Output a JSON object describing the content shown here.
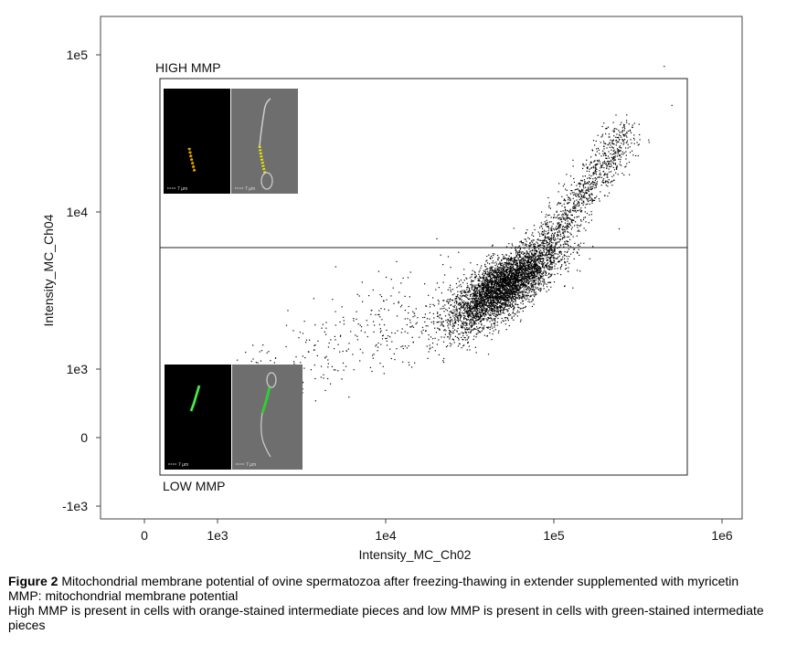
{
  "colors": {
    "points": "#000000",
    "frame": "#444444",
    "orange_stain": "#e6b800",
    "green_stain": "#33cc33",
    "cell_background_dark": "#000000",
    "cell_background_bright": "#6e6e6e"
  },
  "icons": {
    "high_mmp_fluorescence": "orange-stained-spermatozoon-image",
    "high_mmp_brightfield": "brightfield-spermatozoon-image",
    "low_mmp_fluorescence": "green-stained-spermatozoon-image",
    "low_mmp_brightfield": "brightfield-spermatozoon-image"
  },
  "chart_data": {
    "type": "scatter",
    "x_scale": "log",
    "y_scale": "log",
    "xlabel": "Intensity_MC_Ch02",
    "ylabel": "Intensity_MC_Ch04",
    "x_ticks": [
      "0",
      "1e3",
      "1e4",
      "1e5",
      "1e6"
    ],
    "y_ticks": [
      "-1e3",
      "0",
      "1e3",
      "1e4",
      "1e5"
    ],
    "xlim": [
      0,
      1000000
    ],
    "ylim": [
      -1000,
      100000
    ],
    "grid": false,
    "gates": [
      {
        "name": "HIGH MMP",
        "x_range": [
          100,
          600000
        ],
        "y_range": [
          6300,
          65000
        ]
      },
      {
        "name": "LOW MMP",
        "x_range": [
          100,
          600000
        ],
        "y_range": [
          -400,
          6300
        ]
      }
    ],
    "scale_bar_label": "7 µm",
    "point_cloud": {
      "approx_points": 6000,
      "density_peak": {
        "x": 50000,
        "y": 3500
      },
      "trend": "positive correlation; main cluster around x 3e4–1.2e5, y 2e3–6e3, extending to upper right near x 3e5, y 3e4"
    }
  },
  "caption": {
    "figure_label": "Figure 2",
    "line1": " Mitochondrial membrane potential of ovine spermatozoa after freezing-thawing in extender supplemented with myricetin",
    "line2": "MMP: mitochondrial membrane potential",
    "line3": "High MMP is present in cells with orange-stained intermediate pieces and low MMP is present in cells with green-stained intermediate pieces"
  }
}
